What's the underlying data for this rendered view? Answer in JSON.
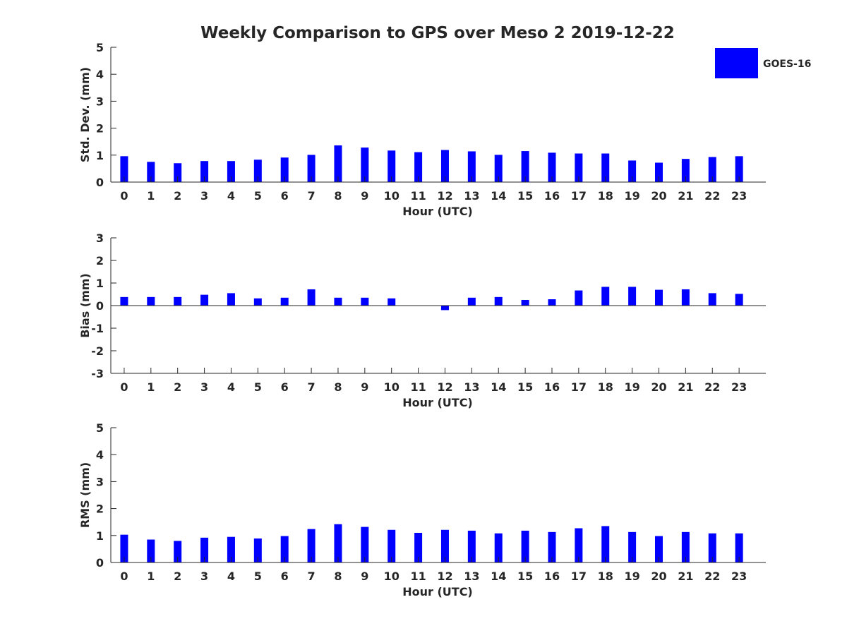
{
  "title": "Weekly Comparison to GPS over Meso 2 2019-12-22",
  "legend": {
    "label": "GOES-16",
    "color": "#0000ff",
    "position": "top-right"
  },
  "chart_data": [
    {
      "type": "bar",
      "ylabel": "Std. Dev. (mm)",
      "xlabel": "Hour (UTC)",
      "ylim": [
        0,
        5
      ],
      "yticks": [
        0,
        1,
        2,
        3,
        4,
        5
      ],
      "categories": [
        0,
        1,
        2,
        3,
        4,
        5,
        6,
        7,
        8,
        9,
        10,
        11,
        12,
        13,
        14,
        15,
        16,
        17,
        18,
        19,
        20,
        21,
        22,
        23
      ],
      "series": [
        {
          "name": "GOES-16",
          "color": "#0000ff",
          "values": [
            0.96,
            0.75,
            0.7,
            0.78,
            0.78,
            0.83,
            0.91,
            1.01,
            1.36,
            1.28,
            1.17,
            1.11,
            1.19,
            1.14,
            1.01,
            1.15,
            1.09,
            1.06,
            1.06,
            0.8,
            0.72,
            0.86,
            0.93,
            0.96
          ]
        }
      ]
    },
    {
      "type": "bar",
      "ylabel": "Bias (mm)",
      "xlabel": "Hour (UTC)",
      "ylim": [
        -3,
        3
      ],
      "yticks": [
        -3,
        -2,
        -1,
        0,
        1,
        2,
        3
      ],
      "categories": [
        0,
        1,
        2,
        3,
        4,
        5,
        6,
        7,
        8,
        9,
        10,
        11,
        12,
        13,
        14,
        15,
        16,
        17,
        18,
        19,
        20,
        21,
        22,
        23
      ],
      "series": [
        {
          "name": "GOES-16",
          "color": "#0000ff",
          "values": [
            0.38,
            0.38,
            0.38,
            0.48,
            0.55,
            0.32,
            0.35,
            0.72,
            0.35,
            0.35,
            0.32,
            0.0,
            -0.2,
            0.35,
            0.38,
            0.25,
            0.28,
            0.67,
            0.83,
            0.83,
            0.7,
            0.72,
            0.55,
            0.52
          ]
        }
      ]
    },
    {
      "type": "bar",
      "ylabel": "RMS (mm)",
      "xlabel": "Hour (UTC)",
      "ylim": [
        0,
        5
      ],
      "yticks": [
        0,
        1,
        2,
        3,
        4,
        5
      ],
      "categories": [
        0,
        1,
        2,
        3,
        4,
        5,
        6,
        7,
        8,
        9,
        10,
        11,
        12,
        13,
        14,
        15,
        16,
        17,
        18,
        19,
        20,
        21,
        22,
        23
      ],
      "series": [
        {
          "name": "GOES-16",
          "color": "#0000ff",
          "values": [
            1.03,
            0.85,
            0.8,
            0.92,
            0.95,
            0.89,
            0.98,
            1.24,
            1.42,
            1.32,
            1.21,
            1.1,
            1.21,
            1.18,
            1.08,
            1.18,
            1.13,
            1.27,
            1.35,
            1.13,
            0.98,
            1.13,
            1.08,
            1.08
          ]
        }
      ]
    }
  ]
}
